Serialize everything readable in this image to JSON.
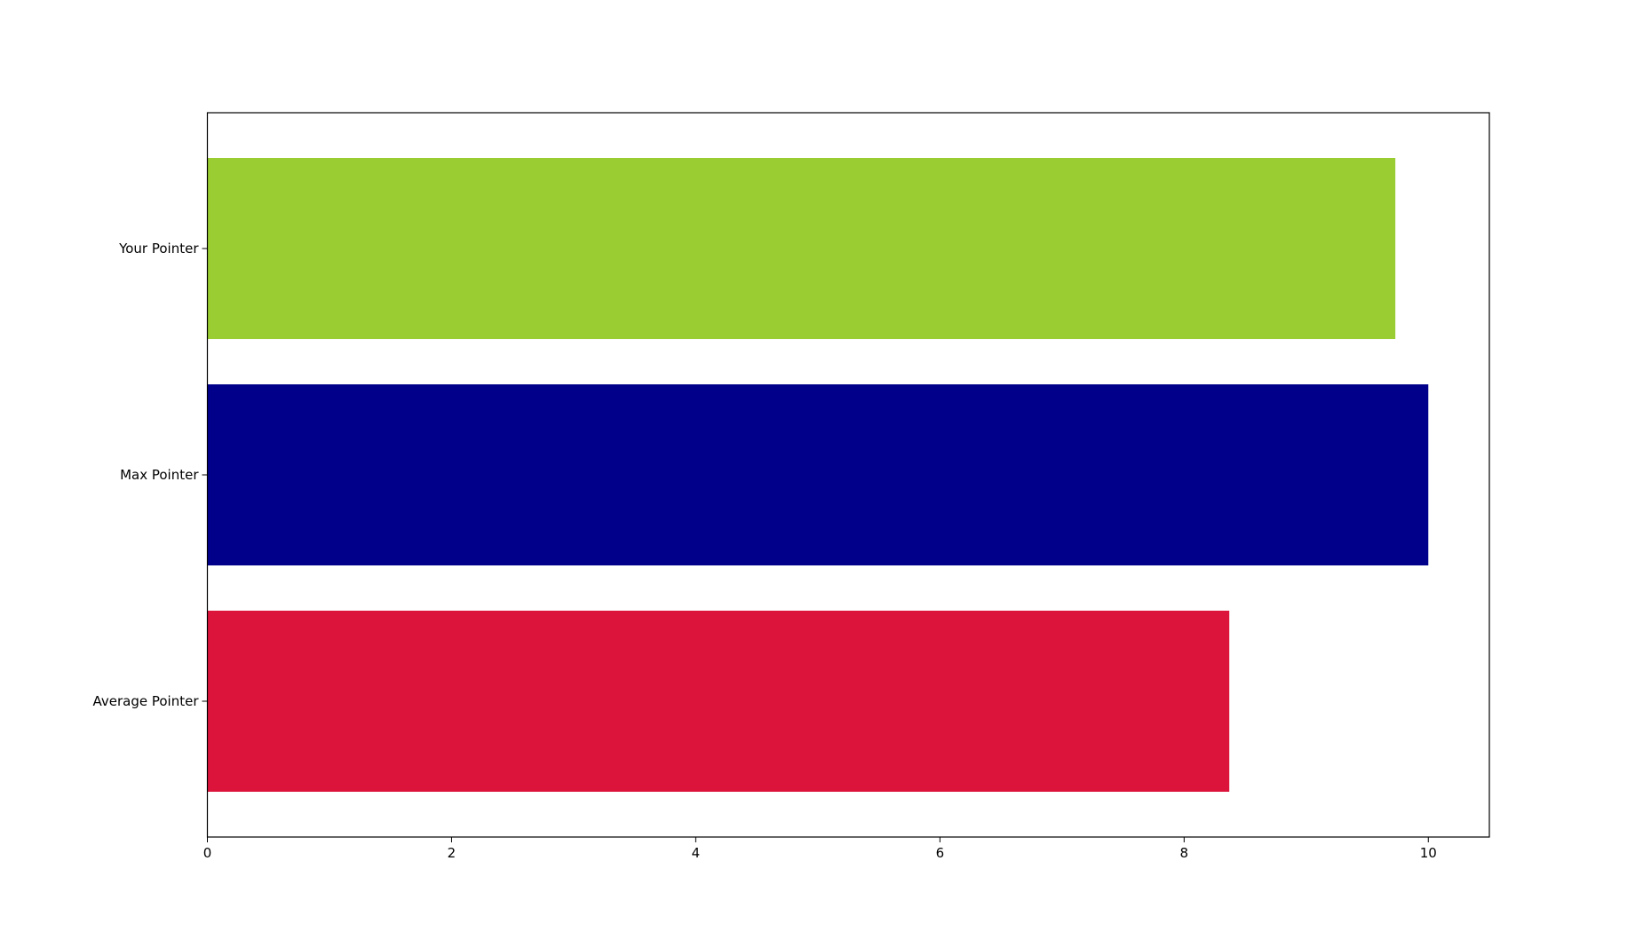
{
  "chart_data": {
    "type": "bar",
    "orientation": "horizontal",
    "categories": [
      "Average Pointer",
      "Max Pointer",
      "Your Pointer"
    ],
    "values": [
      8.37,
      10.0,
      9.73
    ],
    "colors": [
      "#DC143C",
      "#00008B",
      "#9ACD32"
    ],
    "xticks": [
      "0",
      "2",
      "4",
      "6",
      "8",
      "10"
    ],
    "xlim": [
      0,
      10.5
    ],
    "title": "",
    "xlabel": "",
    "ylabel": "",
    "grid": false,
    "legend": "none"
  }
}
